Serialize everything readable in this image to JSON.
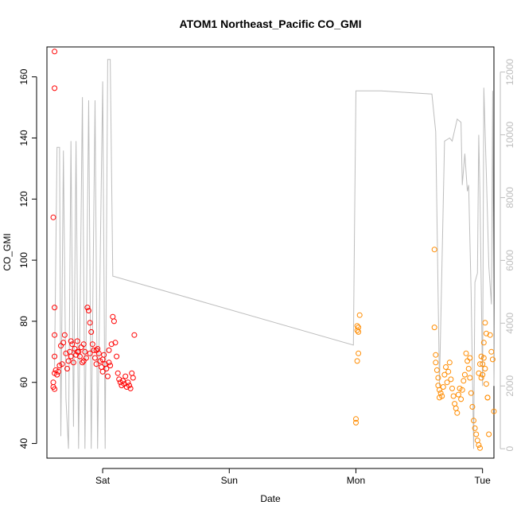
{
  "chart_data": {
    "type": "scatter",
    "title": "ATOM1 Northeast_Pacific CO_GMI",
    "xlabel": "Date",
    "ylabel": "CO_GMI",
    "x_tick_labels": [
      "Sat",
      "Sun",
      "Mon",
      "Tue"
    ],
    "x_tick_values": [
      1,
      2,
      3,
      4
    ],
    "xlim": [
      0.56,
      4.09
    ],
    "ylim": [
      35.2,
      169.8
    ],
    "y_ticks": [
      40,
      60,
      80,
      100,
      120,
      140,
      160
    ],
    "y2_ticks": [
      0,
      2000,
      4000,
      6000,
      8000,
      10000,
      12000
    ],
    "y2lim": [
      -300,
      12800
    ],
    "colors": {
      "series_a": "#ff0000",
      "series_b": "#ff8c00",
      "altitude_line": "#bdbdbd",
      "axis": "#000000",
      "right_axis": "#bdbdbd"
    },
    "series": [
      {
        "marker": "open-circle",
        "color": "#ff0000",
        "points": [
          [
            0.62,
            168.3
          ],
          [
            0.62,
            156.3
          ],
          [
            0.61,
            114.0
          ],
          [
            0.62,
            84.5
          ],
          [
            0.62,
            75.5
          ],
          [
            0.62,
            68.5
          ],
          [
            0.62,
            63.0
          ],
          [
            0.61,
            60.0
          ],
          [
            0.61,
            58.5
          ],
          [
            0.62,
            57.8
          ],
          [
            0.63,
            64.0
          ],
          [
            0.64,
            62.5
          ],
          [
            0.65,
            63.5
          ],
          [
            0.66,
            65.5
          ],
          [
            0.67,
            72.0
          ],
          [
            0.68,
            66.0
          ],
          [
            0.69,
            73.0
          ],
          [
            0.7,
            75.5
          ],
          [
            0.71,
            69.5
          ],
          [
            0.72,
            64.5
          ],
          [
            0.73,
            67.0
          ],
          [
            0.74,
            70.0
          ],
          [
            0.75,
            68.5
          ],
          [
            0.76,
            72.5
          ],
          [
            0.77,
            66.5
          ],
          [
            0.78,
            71.0
          ],
          [
            0.79,
            69.0
          ],
          [
            0.8,
            73.5
          ],
          [
            0.81,
            70.0
          ],
          [
            0.82,
            68.5
          ],
          [
            0.83,
            71.5
          ],
          [
            0.84,
            66.5
          ],
          [
            0.85,
            72.5
          ],
          [
            0.86,
            70.0
          ],
          [
            0.87,
            68.0
          ],
          [
            0.88,
            84.5
          ],
          [
            0.89,
            83.5
          ],
          [
            0.9,
            79.5
          ],
          [
            0.91,
            76.5
          ],
          [
            0.92,
            72.5
          ],
          [
            0.93,
            70.5
          ],
          [
            0.94,
            68.0
          ],
          [
            0.95,
            66.0
          ],
          [
            0.96,
            71.0
          ],
          [
            0.97,
            69.5
          ],
          [
            0.98,
            67.0
          ],
          [
            0.99,
            65.0
          ],
          [
            1.0,
            63.5
          ],
          [
            1.01,
            69.0
          ],
          [
            1.02,
            66.0
          ],
          [
            1.03,
            64.5
          ],
          [
            1.04,
            62.0
          ],
          [
            1.05,
            70.5
          ],
          [
            1.06,
            65.5
          ],
          [
            1.07,
            72.5
          ],
          [
            1.08,
            81.5
          ],
          [
            1.09,
            80.0
          ],
          [
            1.1,
            73.0
          ],
          [
            1.11,
            68.5
          ],
          [
            1.12,
            63.0
          ],
          [
            1.13,
            61.0
          ],
          [
            1.14,
            60.0
          ],
          [
            1.15,
            59.0
          ],
          [
            1.16,
            60.5
          ],
          [
            1.17,
            59.5
          ],
          [
            1.18,
            62.0
          ],
          [
            1.19,
            58.5
          ],
          [
            1.2,
            60.0
          ],
          [
            1.21,
            59.0
          ],
          [
            1.22,
            58.0
          ],
          [
            1.23,
            63.0
          ],
          [
            1.24,
            61.5
          ],
          [
            1.25,
            75.5
          ],
          [
            0.85,
            67.0
          ],
          [
            0.9,
            69.5
          ],
          [
            0.95,
            70.5
          ],
          [
            1.0,
            67.5
          ],
          [
            1.05,
            66.5
          ],
          [
            0.75,
            73.5
          ],
          [
            0.8,
            70.0
          ]
        ]
      },
      {
        "marker": "open-circle",
        "color": "#ff8c00",
        "points": [
          [
            3.01,
            78.5
          ],
          [
            3.01,
            77.0
          ],
          [
            3.02,
            78.0
          ],
          [
            3.01,
            67.0
          ],
          [
            3.02,
            69.5
          ],
          [
            3.0,
            48.0
          ],
          [
            3.0,
            46.8
          ],
          [
            3.03,
            82.0
          ],
          [
            3.02,
            76.5
          ],
          [
            3.62,
            103.5
          ],
          [
            3.62,
            78.0
          ],
          [
            3.63,
            69.0
          ],
          [
            3.63,
            66.5
          ],
          [
            3.64,
            64.0
          ],
          [
            3.65,
            61.5
          ],
          [
            3.65,
            59.0
          ],
          [
            3.66,
            57.5
          ],
          [
            3.66,
            55.0
          ],
          [
            3.67,
            56.5
          ],
          [
            3.68,
            55.5
          ],
          [
            3.69,
            58.5
          ],
          [
            3.7,
            62.5
          ],
          [
            3.71,
            65.0
          ],
          [
            3.72,
            60.0
          ],
          [
            3.73,
            63.5
          ],
          [
            3.74,
            66.5
          ],
          [
            3.75,
            61.0
          ],
          [
            3.76,
            58.0
          ],
          [
            3.77,
            55.5
          ],
          [
            3.78,
            53.0
          ],
          [
            3.79,
            51.5
          ],
          [
            3.8,
            50.0
          ],
          [
            3.81,
            56.0
          ],
          [
            3.82,
            58.0
          ],
          [
            3.83,
            54.5
          ],
          [
            3.84,
            57.5
          ],
          [
            3.85,
            60.5
          ],
          [
            3.86,
            62.5
          ],
          [
            3.87,
            69.5
          ],
          [
            3.88,
            67.0
          ],
          [
            3.89,
            64.5
          ],
          [
            3.9,
            61.5
          ],
          [
            3.91,
            56.5
          ],
          [
            3.92,
            52.0
          ],
          [
            3.93,
            47.5
          ],
          [
            3.94,
            45.0
          ],
          [
            3.95,
            43.0
          ],
          [
            3.96,
            41.0
          ],
          [
            3.97,
            39.5
          ],
          [
            3.98,
            38.5
          ],
          [
            3.99,
            61.5
          ],
          [
            4.0,
            66.0
          ],
          [
            4.01,
            68.0
          ],
          [
            4.02,
            64.5
          ],
          [
            4.03,
            59.5
          ],
          [
            4.04,
            55.0
          ],
          [
            4.05,
            43.0
          ],
          [
            4.06,
            75.5
          ],
          [
            4.07,
            70.0
          ],
          [
            4.08,
            67.5
          ],
          [
            4.09,
            50.5
          ],
          [
            3.97,
            63.0
          ],
          [
            3.98,
            66.0
          ],
          [
            3.99,
            68.5
          ],
          [
            4.0,
            62.5
          ],
          [
            4.01,
            73.0
          ],
          [
            4.02,
            79.5
          ],
          [
            4.03,
            76.0
          ],
          [
            4.04,
            55.0
          ],
          [
            3.9,
            68.0
          ]
        ]
      }
    ],
    "altitude_line": {
      "axis": "right",
      "points": [
        [
          0.62,
          2600
        ],
        [
          0.64,
          9600
        ],
        [
          0.66,
          9600
        ],
        [
          0.67,
          400
        ],
        [
          0.69,
          9500
        ],
        [
          0.71,
          1600
        ],
        [
          0.73,
          0
        ],
        [
          0.75,
          9800
        ],
        [
          0.77,
          700
        ],
        [
          0.79,
          9800
        ],
        [
          0.81,
          0
        ],
        [
          0.84,
          11200
        ],
        [
          0.86,
          0
        ],
        [
          0.89,
          11100
        ],
        [
          0.91,
          0
        ],
        [
          0.94,
          11100
        ],
        [
          0.96,
          0
        ],
        [
          1.0,
          11700
        ],
        [
          1.02,
          0
        ],
        [
          1.04,
          12400
        ],
        [
          1.05,
          12400
        ],
        [
          1.06,
          12400
        ],
        [
          1.08,
          5500
        ],
        [
          2.98,
          3300
        ],
        [
          2.99,
          7500
        ],
        [
          3.0,
          11400
        ],
        [
          3.02,
          11400
        ],
        [
          3.1,
          11400
        ],
        [
          3.2,
          11400
        ],
        [
          3.4,
          11350
        ],
        [
          3.6,
          11300
        ],
        [
          3.63,
          10100
        ],
        [
          3.66,
          2000
        ],
        [
          3.7,
          9800
        ],
        [
          3.74,
          9900
        ],
        [
          3.76,
          9800
        ],
        [
          3.8,
          10500
        ],
        [
          3.83,
          10400
        ],
        [
          3.84,
          8400
        ],
        [
          3.86,
          9400
        ],
        [
          3.88,
          8200
        ],
        [
          3.89,
          8400
        ],
        [
          3.91,
          5000
        ],
        [
          3.93,
          0
        ],
        [
          3.94,
          5300
        ],
        [
          3.96,
          5600
        ],
        [
          3.97,
          10000
        ],
        [
          3.98,
          8000
        ],
        [
          4.0,
          2000
        ],
        [
          4.01,
          11500
        ],
        [
          4.03,
          8800
        ],
        [
          4.05,
          5800
        ],
        [
          4.07,
          4600
        ],
        [
          4.08,
          11400
        ],
        [
          4.09,
          2000
        ]
      ]
    }
  }
}
